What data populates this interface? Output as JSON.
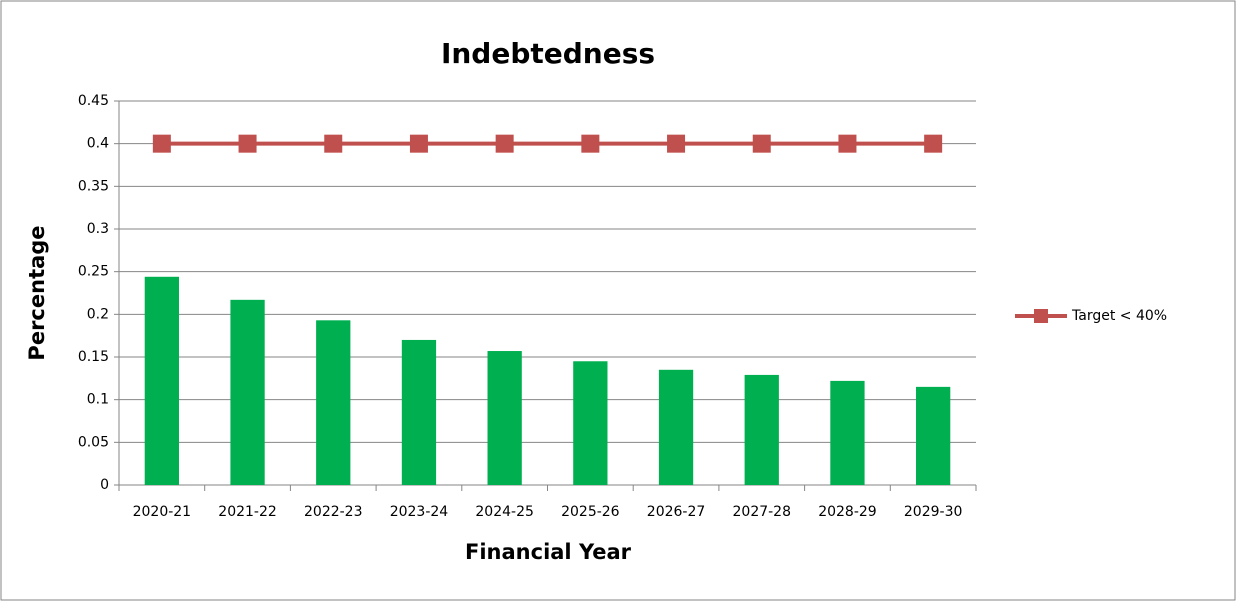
{
  "chart_data": {
    "type": "bar",
    "title": "Indebtedness",
    "x_label": "Financial Year",
    "y_label": "Percentage",
    "categories": [
      "2020-21",
      "2021-22",
      "2022-23",
      "2023-24",
      "2024-25",
      "2025-26",
      "2026-27",
      "2027-28",
      "2028-29",
      "2029-30"
    ],
    "series": [
      {
        "type": "bar",
        "color": "#00b050",
        "values": [
          0.244,
          0.217,
          0.193,
          0.17,
          0.157,
          0.145,
          0.135,
          0.129,
          0.122,
          0.115
        ]
      },
      {
        "type": "line",
        "name": "Target < 40%",
        "color": "#c0504d",
        "values": [
          0.4,
          0.4,
          0.4,
          0.4,
          0.4,
          0.4,
          0.4,
          0.4,
          0.4,
          0.4
        ]
      }
    ],
    "ylim": [
      0,
      0.45
    ],
    "yticks": [
      0,
      0.05,
      0.1,
      0.15,
      0.2,
      0.25,
      0.3,
      0.35,
      0.4,
      0.45
    ],
    "grid": true,
    "legend": "right"
  }
}
